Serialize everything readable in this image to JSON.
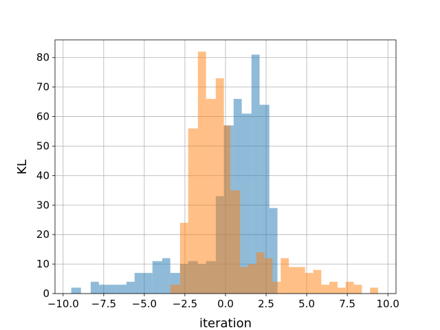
{
  "chart_data": {
    "type": "histogram",
    "title": "",
    "xlabel": "iteration",
    "ylabel": "KL",
    "xlim": [
      -10.5,
      10.5
    ],
    "ylim": [
      0,
      86
    ],
    "xticks": [
      -10.0,
      -7.5,
      -5.0,
      -2.5,
      0.0,
      2.5,
      5.0,
      7.5,
      10.0
    ],
    "xtick_labels": [
      "−10.0",
      "−7.5",
      "−5.0",
      "−2.5",
      "0.0",
      "2.5",
      "5.0",
      "7.5",
      "10.0"
    ],
    "yticks": [
      0,
      10,
      20,
      30,
      40,
      50,
      60,
      70,
      80
    ],
    "ytick_labels": [
      "0",
      "10",
      "20",
      "30",
      "40",
      "50",
      "60",
      "70",
      "80"
    ],
    "grid": true,
    "legend": "none",
    "bar_alpha": 0.5,
    "series": [
      {
        "color": "#1f77b4",
        "bins": [
          {
            "x0": -9.5,
            "x1": -8.9,
            "count": 2
          },
          {
            "x0": -8.9,
            "x1": -8.3,
            "count": 0
          },
          {
            "x0": -8.3,
            "x1": -7.8,
            "count": 4
          },
          {
            "x0": -7.8,
            "x1": -7.2,
            "count": 3
          },
          {
            "x0": -7.2,
            "x1": -6.7,
            "count": 3
          },
          {
            "x0": -6.7,
            "x1": -6.1,
            "count": 3
          },
          {
            "x0": -6.1,
            "x1": -5.6,
            "count": 4
          },
          {
            "x0": -5.6,
            "x1": -5.0,
            "count": 7
          },
          {
            "x0": -5.0,
            "x1": -4.5,
            "count": 7
          },
          {
            "x0": -4.5,
            "x1": -3.9,
            "count": 11
          },
          {
            "x0": -3.9,
            "x1": -3.4,
            "count": 12
          },
          {
            "x0": -3.4,
            "x1": -2.8,
            "count": 7
          },
          {
            "x0": -2.8,
            "x1": -2.3,
            "count": 10
          },
          {
            "x0": -2.3,
            "x1": -1.7,
            "count": 11
          },
          {
            "x0": -1.7,
            "x1": -1.2,
            "count": 10
          },
          {
            "x0": -1.2,
            "x1": -0.6,
            "count": 11
          },
          {
            "x0": -0.6,
            "x1": -0.1,
            "count": 33
          },
          {
            "x0": -0.1,
            "x1": 0.5,
            "count": 57
          },
          {
            "x0": 0.5,
            "x1": 1.0,
            "count": 66
          },
          {
            "x0": 1.0,
            "x1": 1.6,
            "count": 61
          },
          {
            "x0": 1.6,
            "x1": 2.1,
            "count": 81
          },
          {
            "x0": 2.1,
            "x1": 2.7,
            "count": 64
          },
          {
            "x0": 2.7,
            "x1": 3.2,
            "count": 29
          }
        ]
      },
      {
        "color": "#ff7f0e",
        "bins": [
          {
            "x0": -3.4,
            "x1": -2.8,
            "count": 3
          },
          {
            "x0": -2.8,
            "x1": -2.3,
            "count": 24
          },
          {
            "x0": -2.3,
            "x1": -1.7,
            "count": 56
          },
          {
            "x0": -1.7,
            "x1": -1.2,
            "count": 82
          },
          {
            "x0": -1.2,
            "x1": -0.6,
            "count": 66
          },
          {
            "x0": -0.6,
            "x1": -0.1,
            "count": 73
          },
          {
            "x0": -0.1,
            "x1": 0.3,
            "count": 57
          },
          {
            "x0": 0.3,
            "x1": 0.9,
            "count": 35
          },
          {
            "x0": 0.9,
            "x1": 1.4,
            "count": 9
          },
          {
            "x0": 1.4,
            "x1": 1.9,
            "count": 10
          },
          {
            "x0": 1.9,
            "x1": 2.4,
            "count": 14
          },
          {
            "x0": 2.4,
            "x1": 2.9,
            "count": 12
          },
          {
            "x0": 2.9,
            "x1": 3.4,
            "count": 4
          },
          {
            "x0": 3.4,
            "x1": 3.9,
            "count": 12
          },
          {
            "x0": 3.9,
            "x1": 4.4,
            "count": 9
          },
          {
            "x0": 4.4,
            "x1": 4.9,
            "count": 9
          },
          {
            "x0": 4.9,
            "x1": 5.4,
            "count": 7
          },
          {
            "x0": 5.4,
            "x1": 5.9,
            "count": 8
          },
          {
            "x0": 5.9,
            "x1": 6.4,
            "count": 3
          },
          {
            "x0": 6.4,
            "x1": 6.9,
            "count": 4
          },
          {
            "x0": 6.9,
            "x1": 7.4,
            "count": 2
          },
          {
            "x0": 7.4,
            "x1": 7.9,
            "count": 4
          },
          {
            "x0": 7.9,
            "x1": 8.4,
            "count": 3
          },
          {
            "x0": 8.4,
            "x1": 8.9,
            "count": 0
          },
          {
            "x0": 8.9,
            "x1": 9.4,
            "count": 2
          }
        ]
      }
    ]
  }
}
